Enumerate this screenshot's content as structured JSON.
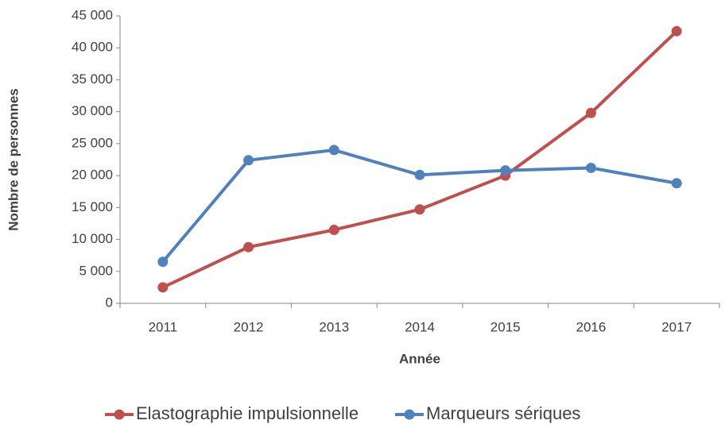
{
  "chart_data": {
    "type": "line",
    "x_label": "Année",
    "y_label": "Nombre de personnes",
    "categories": [
      "2011",
      "2012",
      "2013",
      "2014",
      "2015",
      "2016",
      "2017"
    ],
    "series": [
      {
        "name": "Elastographie impulsionnelle",
        "color": "#c0504d",
        "values": [
          2500,
          8800,
          11500,
          14700,
          20000,
          29800,
          42600
        ]
      },
      {
        "name": "Marqueurs sériques",
        "color": "#4f81bd",
        "values": [
          6500,
          22400,
          24000,
          20100,
          20800,
          21200,
          18800
        ]
      }
    ],
    "ylim": [
      0,
      45000
    ],
    "yticks": [
      0,
      {
        "value": 5000,
        "label": "5 000"
      },
      {
        "value": 10000,
        "label": "10 000"
      },
      {
        "value": 15000,
        "label": "15 000"
      },
      {
        "value": 20000,
        "label": "20 000"
      },
      {
        "value": 25000,
        "label": "25 000"
      },
      {
        "value": 30000,
        "label": "30 000"
      },
      {
        "value": 35000,
        "label": "35 000"
      },
      {
        "value": 40000,
        "label": "40 000"
      },
      {
        "value": 45000,
        "label": "45 000"
      }
    ],
    "grid": false,
    "legend": "bottom"
  }
}
